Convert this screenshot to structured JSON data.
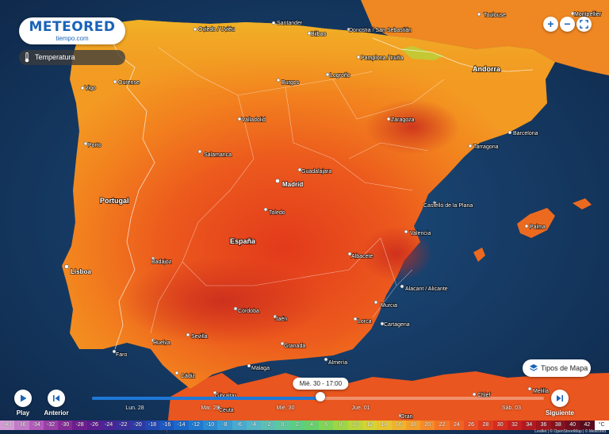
{
  "logo": {
    "main": "METEORED",
    "sub": "tiempo.com"
  },
  "layer": {
    "label": "Temperatura",
    "icon": "thermometer-icon"
  },
  "map_controls": {
    "zoom_in": "+",
    "zoom_out": "−",
    "fullscreen_icon": "expand-icon"
  },
  "maptype": {
    "label": "Tipos de Mapa",
    "icon": "layers-icon"
  },
  "player": {
    "play_label": "Play",
    "previous_label": "Anterior",
    "next_label": "Siguiente",
    "current_time": "Mié. 30 - 17:00",
    "progress": 0.506,
    "days": [
      "Lun. 28",
      "Mar. 29",
      "Mié. 30",
      "Jue. 01",
      "Sáb. 03"
    ]
  },
  "countries": [
    {
      "name": "Portugal"
    },
    {
      "name": "España"
    },
    {
      "name": "Andorra"
    }
  ],
  "cities": [
    "Oviedo / Uviéu",
    "Santander",
    "Bilbao",
    "Donostia / San Sebastián",
    "Toulouse",
    "Montpellier",
    "Pamplona / Iruña",
    "Vigo",
    "Ourense",
    "Burgos",
    "Logroño",
    "Valladolid",
    "Zaragoza",
    "Barcelona",
    "Tarragona",
    "Porto",
    "Salamanca",
    "Guadalajara",
    "Madrid",
    "Toledo",
    "Castelló de la Plana",
    "Palma",
    "Valencia",
    "Lisboa",
    "Badajoz",
    "Albacete",
    "Alacant / Alicante",
    "Murcia",
    "Córdoba",
    "Jaén",
    "Lorca",
    "Cartagena",
    "Sevilla",
    "Granada",
    "Huelva",
    "Almería",
    "Faro",
    "Málaga",
    "Cádiz",
    "Gibraltar",
    "Ceuta",
    "Melilla",
    "Oran",
    "Chlef"
  ],
  "legend": {
    "unit": "°C",
    "values": [
      "-40",
      "-36",
      "-34",
      "-32",
      "-30",
      "-28",
      "-26",
      "-24",
      "-22",
      "-20",
      "-18",
      "-16",
      "-14",
      "-12",
      "-10",
      "-8",
      "-6",
      "-4",
      "-2",
      "0",
      "2",
      "4",
      "6",
      "8",
      "10",
      "12",
      "14",
      "16",
      "18",
      "20",
      "22",
      "24",
      "26",
      "28",
      "30",
      "32",
      "34",
      "36",
      "38",
      "40",
      "42"
    ],
    "colors": [
      "#d29bd4",
      "#c37ac9",
      "#b15bbb",
      "#9a3fa8",
      "#842b98",
      "#6d1e8d",
      "#5b1d90",
      "#4a2596",
      "#3a2f9d",
      "#2c3aa6",
      "#2248b3",
      "#1d57c0",
      "#1a68c9",
      "#1f79cf",
      "#2a8ad2",
      "#3a9ad2",
      "#49a9cf",
      "#55b5c4",
      "#5cbfb3",
      "#5fc79d",
      "#5ecd84",
      "#66d16a",
      "#80d456",
      "#9dd646",
      "#bad63c",
      "#d4d334",
      "#e6c52f",
      "#efb42d",
      "#f3a02b",
      "#f58b29",
      "#f47527",
      "#f06124",
      "#ea4e22",
      "#e03c20",
      "#d42d1f",
      "#c6211f",
      "#b31a1f",
      "#9d151f",
      "#86121f",
      "#6f0f1f",
      "#5a0c1e"
    ]
  },
  "attribution": "Leaflet | © OpenStreetMap | © Meteored"
}
